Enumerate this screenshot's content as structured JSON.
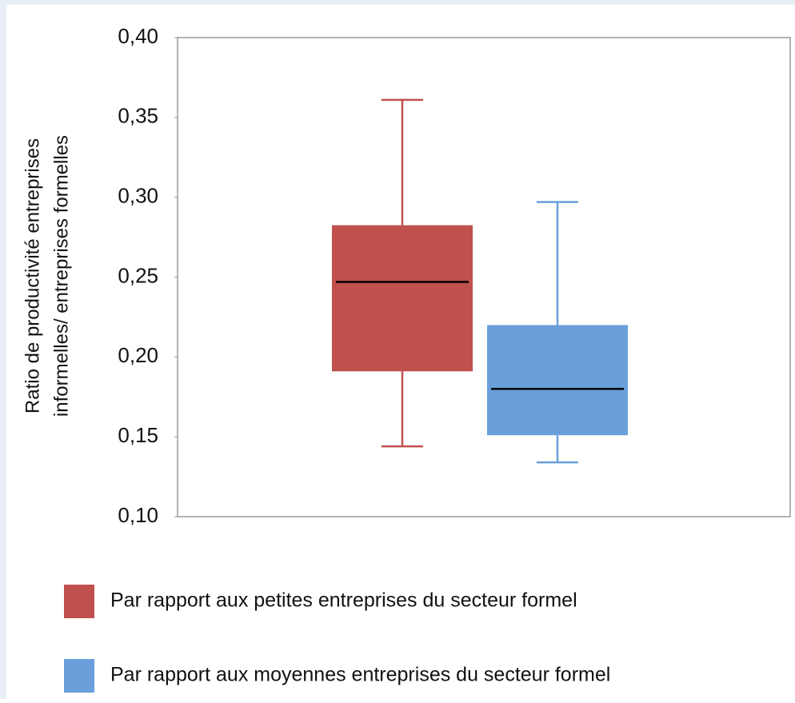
{
  "chart_data": {
    "type": "box",
    "ylabel": [
      "Ratio de productivité  entreprises",
      "informelles/ entreprises formelles"
    ],
    "ylim": [
      0.1,
      0.4
    ],
    "yticks": [
      {
        "value": 0.1,
        "label": "0,10"
      },
      {
        "value": 0.15,
        "label": "0,15"
      },
      {
        "value": 0.2,
        "label": "0,20"
      },
      {
        "value": 0.25,
        "label": "0,25"
      },
      {
        "value": 0.3,
        "label": "0,30"
      },
      {
        "value": 0.35,
        "label": "0,35"
      },
      {
        "value": 0.4,
        "label": "0,40"
      }
    ],
    "series": [
      {
        "name": "Par rapport aux petites entreprises du secteur formel",
        "color": "#c0504d",
        "min": 0.144,
        "q1": 0.191,
        "median": 0.247,
        "q3": 0.2825,
        "max": 0.361
      },
      {
        "name": "Par rapport aux moyennes entreprises du secteur formel",
        "color": "#6a9fdc",
        "min": 0.134,
        "q1": 0.151,
        "median": 0.18,
        "q3": 0.22,
        "max": 0.297
      }
    ]
  }
}
